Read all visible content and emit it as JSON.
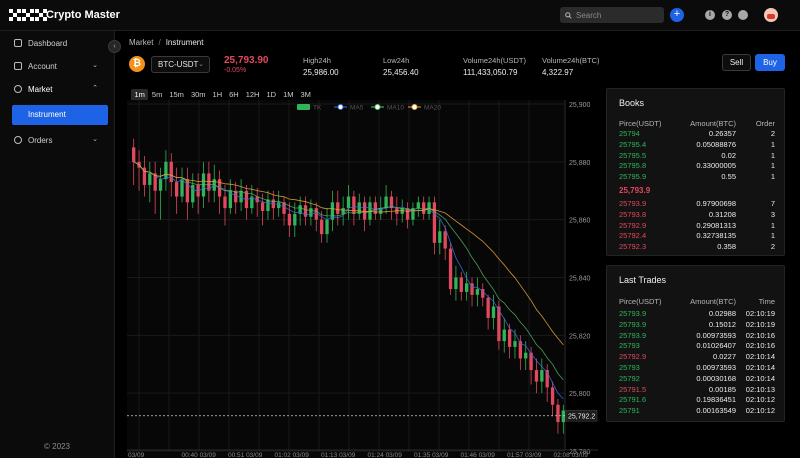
{
  "app": {
    "title": "Crypto Master"
  },
  "search": {
    "placeholder": "Search"
  },
  "sidebar": {
    "items": [
      {
        "label": "Dashboard"
      },
      {
        "label": "Account"
      },
      {
        "label": "Market"
      },
      {
        "label": "Instrument"
      },
      {
        "label": "Orders"
      }
    ],
    "copyright": "© 2023"
  },
  "breadcrumb": {
    "root": "Market",
    "sep": "/",
    "current": "Instrument"
  },
  "ticker": {
    "pair": "BTC-USDT",
    "coin_symbol": "₿",
    "price": "25,793.90",
    "change": "-0.05%",
    "stats": [
      {
        "label": "High24h",
        "value": "25,986.00"
      },
      {
        "label": "Low24h",
        "value": "25,456.40"
      },
      {
        "label": "Volume24h(USDT)",
        "value": "111,433,050.79"
      },
      {
        "label": "Volume24h(BTC)",
        "value": "4,322.97"
      }
    ],
    "sell_label": "Sell",
    "buy_label": "Buy"
  },
  "timeframes": [
    "1m",
    "5m",
    "15m",
    "30m",
    "1H",
    "6H",
    "12H",
    "1D",
    "1M",
    "3M"
  ],
  "active_timeframe": "1m",
  "colors": {
    "accent": "#1e63e5",
    "up": "#2fb457",
    "down": "#e0495e",
    "ma5": "#3b6fe0",
    "ma10": "#58c26a",
    "ma20": "#e8a33a"
  },
  "chart_data": {
    "type": "candlestick",
    "legend": [
      "TK",
      "MA5",
      "MA10",
      "MA20"
    ],
    "y_ticks": [
      "25,900",
      "25,880",
      "25,860",
      "25,840",
      "25,820",
      "25,800",
      "25,780"
    ],
    "ylim": [
      25780,
      25900
    ],
    "x_ticks": [
      "03/09",
      "00:40 03/09",
      "00:51 03/09",
      "01:02 03/09",
      "01:13 03/09",
      "01:24 03/09",
      "01:35 03/09",
      "01:46 03/09",
      "01:57 03/09",
      "02:08 03/09"
    ],
    "last_price_label": "25,792.2",
    "last_price": 25792.2,
    "candles": [
      [
        25885,
        25880,
        25888,
        25872
      ],
      [
        25880,
        25878,
        25884,
        25870
      ],
      [
        25878,
        25872,
        25882,
        25868
      ],
      [
        25872,
        25876,
        25880,
        25866
      ],
      [
        25876,
        25870,
        25880,
        25862
      ],
      [
        25870,
        25874,
        25878,
        25860
      ],
      [
        25874,
        25880,
        25884,
        25870
      ],
      [
        25880,
        25873,
        25883,
        25868
      ],
      [
        25873,
        25868,
        25878,
        25862
      ],
      [
        25868,
        25874,
        25878,
        25866
      ],
      [
        25874,
        25866,
        25878,
        25860
      ],
      [
        25866,
        25872,
        25876,
        25864
      ],
      [
        25872,
        25868,
        25876,
        25862
      ],
      [
        25868,
        25876,
        25880,
        25864
      ],
      [
        25876,
        25870,
        25880,
        25866
      ],
      [
        25870,
        25874,
        25879,
        25866
      ],
      [
        25874,
        25868,
        25877,
        25862
      ],
      [
        25868,
        25864,
        25872,
        25858
      ],
      [
        25864,
        25870,
        25874,
        25862
      ],
      [
        25870,
        25866,
        25873,
        25862
      ],
      [
        25866,
        25870,
        25874,
        25863
      ],
      [
        25870,
        25864,
        25872,
        25860
      ],
      [
        25864,
        25868,
        25872,
        25862
      ],
      [
        25868,
        25866,
        25871,
        25861
      ],
      [
        25866,
        25863,
        25869,
        25858
      ],
      [
        25863,
        25867,
        25870,
        25860
      ],
      [
        25867,
        25864,
        25870,
        25860
      ],
      [
        25864,
        25866,
        25870,
        25861
      ],
      [
        25866,
        25862,
        25868,
        25858
      ],
      [
        25862,
        25858,
        25866,
        25854
      ],
      [
        25858,
        25862,
        25866,
        25854
      ],
      [
        25862,
        25865,
        25868,
        25858
      ],
      [
        25865,
        25861,
        25868,
        25858
      ],
      [
        25861,
        25864,
        25867,
        25858
      ],
      [
        25864,
        25860,
        25866,
        25856
      ],
      [
        25860,
        25855,
        25863,
        25852
      ],
      [
        25855,
        25860,
        25864,
        25852
      ],
      [
        25860,
        25866,
        25870,
        25856
      ],
      [
        25866,
        25862,
        25870,
        25858
      ],
      [
        25862,
        25864,
        25868,
        25858
      ],
      [
        25864,
        25868,
        25872,
        25860
      ],
      [
        25868,
        25862,
        25870,
        25858
      ],
      [
        25862,
        25866,
        25869,
        25860
      ],
      [
        25866,
        25860,
        25868,
        25856
      ],
      [
        25860,
        25866,
        25868,
        25858
      ],
      [
        25866,
        25862,
        25868,
        25860
      ],
      [
        25862,
        25864,
        25868,
        25860
      ],
      [
        25864,
        25868,
        25872,
        25862
      ],
      [
        25868,
        25864,
        25870,
        25860
      ],
      [
        25864,
        25862,
        25868,
        25858
      ],
      [
        25862,
        25864,
        25867,
        25859
      ],
      [
        25864,
        25860,
        25866,
        25857
      ],
      [
        25860,
        25864,
        25866,
        25858
      ],
      [
        25864,
        25866,
        25868,
        25861
      ],
      [
        25866,
        25862,
        25868,
        25860
      ],
      [
        25862,
        25866,
        25868,
        25860
      ],
      [
        25866,
        25852,
        25868,
        25848
      ],
      [
        25852,
        25856,
        25860,
        25848
      ],
      [
        25856,
        25850,
        25858,
        25846
      ],
      [
        25850,
        25836,
        25852,
        25834
      ],
      [
        25836,
        25840,
        25844,
        25832
      ],
      [
        25840,
        25835,
        25842,
        25832
      ],
      [
        25835,
        25838,
        25842,
        25832
      ],
      [
        25838,
        25834,
        25840,
        25830
      ],
      [
        25834,
        25836,
        25840,
        25830
      ],
      [
        25836,
        25833,
        25838,
        25830
      ],
      [
        25833,
        25826,
        25834,
        25822
      ],
      [
        25826,
        25830,
        25834,
        25822
      ],
      [
        25830,
        25818,
        25832,
        25815
      ],
      [
        25818,
        25822,
        25826,
        25814
      ],
      [
        25822,
        25816,
        25824,
        25812
      ],
      [
        25816,
        25818,
        25822,
        25812
      ],
      [
        25818,
        25812,
        25820,
        25808
      ],
      [
        25812,
        25814,
        25818,
        25808
      ],
      [
        25814,
        25808,
        25816,
        25803
      ],
      [
        25808,
        25804,
        25812,
        25800
      ],
      [
        25804,
        25808,
        25812,
        25800
      ],
      [
        25808,
        25802,
        25810,
        25797
      ],
      [
        25802,
        25796,
        25804,
        25792
      ],
      [
        25796,
        25790,
        25798,
        25786
      ],
      [
        25790,
        25794,
        25796,
        25786
      ]
    ]
  },
  "books": {
    "title": "Books",
    "headers": [
      "Pirce(USDT)",
      "Amount(BTC)",
      "Order"
    ],
    "bids": [
      [
        "25794",
        "0.26357",
        "2"
      ],
      [
        "25795.4",
        "0.05088876",
        "1"
      ],
      [
        "25795.5",
        "0.02",
        "1"
      ],
      [
        "25795.8",
        "0.33000005",
        "1"
      ],
      [
        "25795.9",
        "0.55",
        "1"
      ]
    ],
    "mid_price": "25,793.9",
    "asks": [
      [
        "25793.9",
        "0.97900698",
        "7"
      ],
      [
        "25793.8",
        "0.31208",
        "3"
      ],
      [
        "25792.9",
        "0.29081313",
        "1"
      ],
      [
        "25792.4",
        "0.32738135",
        "1"
      ],
      [
        "25792.3",
        "0.358",
        "2"
      ]
    ]
  },
  "trades": {
    "title": "Last Trades",
    "headers": [
      "Pirce(USDT)",
      "Amount(BTC)",
      "Time"
    ],
    "rows": [
      [
        "25793.9",
        "0.02988",
        "02:10:19",
        "up"
      ],
      [
        "25793.9",
        "0.15012",
        "02:10:19",
        "up"
      ],
      [
        "25793.9",
        "0.00973593",
        "02:10:16",
        "up"
      ],
      [
        "25793",
        "0.01026407",
        "02:10:16",
        "up"
      ],
      [
        "25792.9",
        "0.0227",
        "02:10:14",
        "down"
      ],
      [
        "25793",
        "0.00973593",
        "02:10:14",
        "up"
      ],
      [
        "25792",
        "0.00030168",
        "02:10:14",
        "up"
      ],
      [
        "25791.5",
        "0.00185",
        "02:10:13",
        "down"
      ],
      [
        "25791.6",
        "0.19836451",
        "02:10:12",
        "up"
      ],
      [
        "25791",
        "0.00163549",
        "02:10:12",
        "up"
      ]
    ]
  }
}
